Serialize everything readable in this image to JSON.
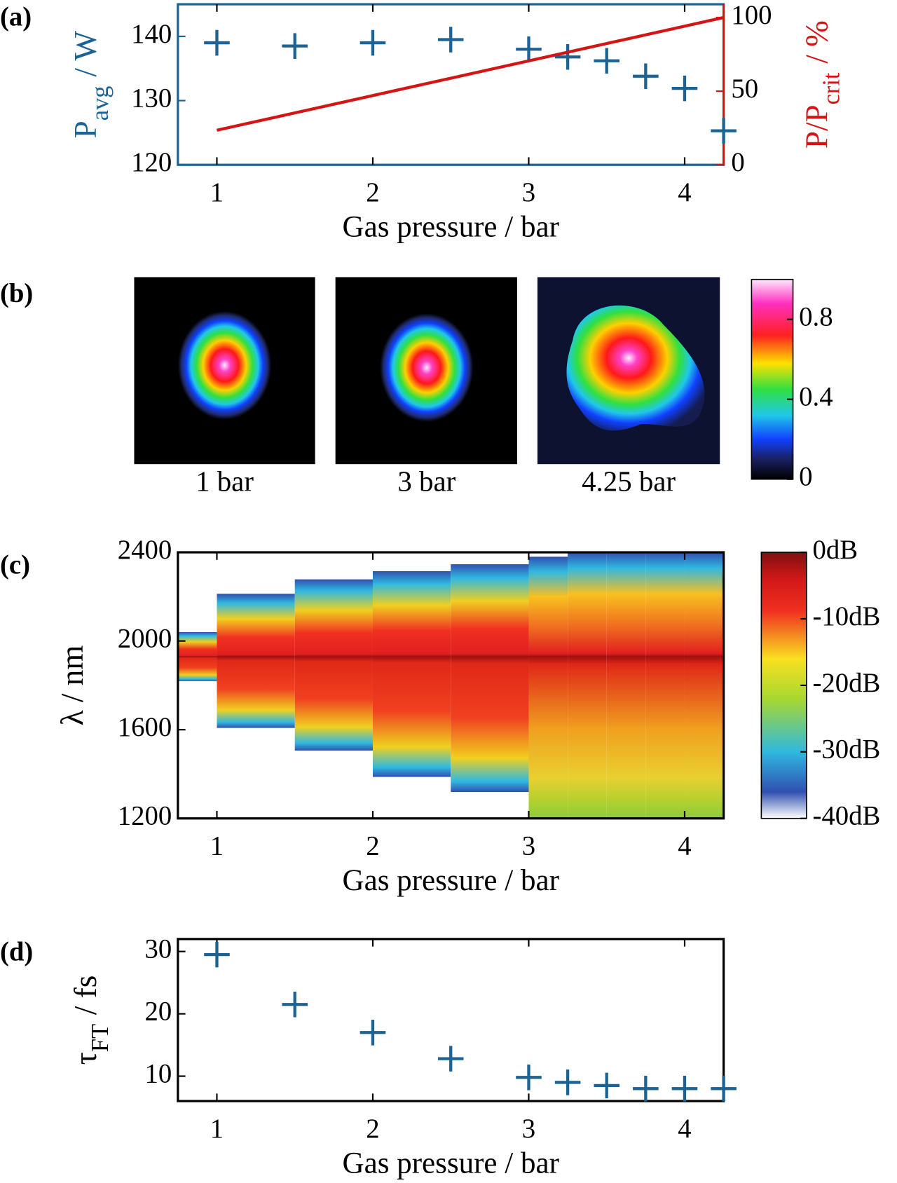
{
  "chart_data": [
    {
      "type": "scatter",
      "panel": "(a)",
      "x": [
        1,
        1.5,
        2,
        2.5,
        3,
        3.25,
        3.5,
        3.75,
        4,
        4.25
      ],
      "series": [
        {
          "color": "#1c6394",
          "marker": "+",
          "values": [
            139,
            138.5,
            139,
            139.5,
            138,
            136.8,
            136.2,
            133.8,
            131.9,
            125.3
          ]
        },
        {
          "type": "line",
          "color": "#d41515",
          "axis": "y2",
          "x": [
            1,
            4.25
          ],
          "values": [
            23.5,
            100
          ]
        }
      ],
      "xlim": [
        0.75,
        4.25
      ],
      "xticks": [
        1,
        2,
        3,
        4
      ],
      "ylim": [
        120,
        145
      ],
      "yticks": [
        120,
        130,
        140
      ],
      "y2lim": [
        0,
        109
      ],
      "y2ticks": [
        0,
        50,
        100
      ],
      "xlabel": "Gas pressure / bar",
      "ylabel": "P",
      "ylabel_sub": "avg",
      "ylabel_rest": "/ W",
      "y2label": "P/P",
      "y2label_sub": "crit",
      "y2label_rest": "/ %",
      "axis_color": "#1c6394",
      "axis2_color": "#d41515"
    },
    {
      "type": "image",
      "panel": "(b)",
      "captions": [
        "1 bar",
        "3 bar",
        "4.25 bar"
      ],
      "colorbar": {
        "lim": [
          0,
          1
        ],
        "ticks": [
          0,
          0.4,
          0.8
        ]
      }
    },
    {
      "type": "heatmap",
      "panel": "(c)",
      "bins": [
        0.75,
        1,
        1.5,
        2,
        2.5,
        3,
        3.25,
        3.5,
        3.75,
        4,
        4.25
      ],
      "upper": [
        2040,
        2213,
        2278,
        2315,
        2346,
        2380,
        2400,
        2400,
        2400,
        2400
      ],
      "lower": [
        1819,
        1608,
        1506,
        1387,
        1319,
        1200,
        1200,
        1200,
        1200,
        1200
      ],
      "xlim": [
        0.75,
        4.25
      ],
      "xticks": [
        1,
        2,
        3,
        4
      ],
      "ylim": [
        1200,
        2400
      ],
      "yticks": [
        1200,
        1600,
        2000,
        2400
      ],
      "xlabel": "Gas pressure / bar",
      "ylabel": "λ / nm",
      "colorbar": {
        "lim": [
          -40,
          0
        ],
        "ticks": [
          {
            "value": -40,
            "label": "-40dB"
          },
          {
            "value": -30,
            "label": "-30dB"
          },
          {
            "value": -20,
            "label": "-20dB"
          },
          {
            "value": -10,
            "label": "-10dB"
          },
          {
            "value": 0,
            "label": "0dB"
          }
        ]
      }
    },
    {
      "type": "scatter",
      "panel": "(d)",
      "x": [
        1,
        1.5,
        2,
        2.5,
        3,
        3.25,
        3.5,
        3.75,
        4,
        4.25
      ],
      "series": [
        {
          "color": "#1c6394",
          "marker": "+",
          "values": [
            29.5,
            21.5,
            17,
            12.8,
            9.8,
            9,
            8.5,
            8,
            8,
            8
          ]
        }
      ],
      "xlim": [
        0.75,
        4.25
      ],
      "xticks": [
        1,
        2,
        3,
        4
      ],
      "ylim": [
        6,
        32
      ],
      "yticks": [
        10,
        20,
        30
      ],
      "xlabel": "Gas pressure / bar",
      "ylabel": "τ",
      "ylabel_sub": "FT",
      "ylabel_rest": "/ fs",
      "axis_color": "#000000"
    }
  ]
}
